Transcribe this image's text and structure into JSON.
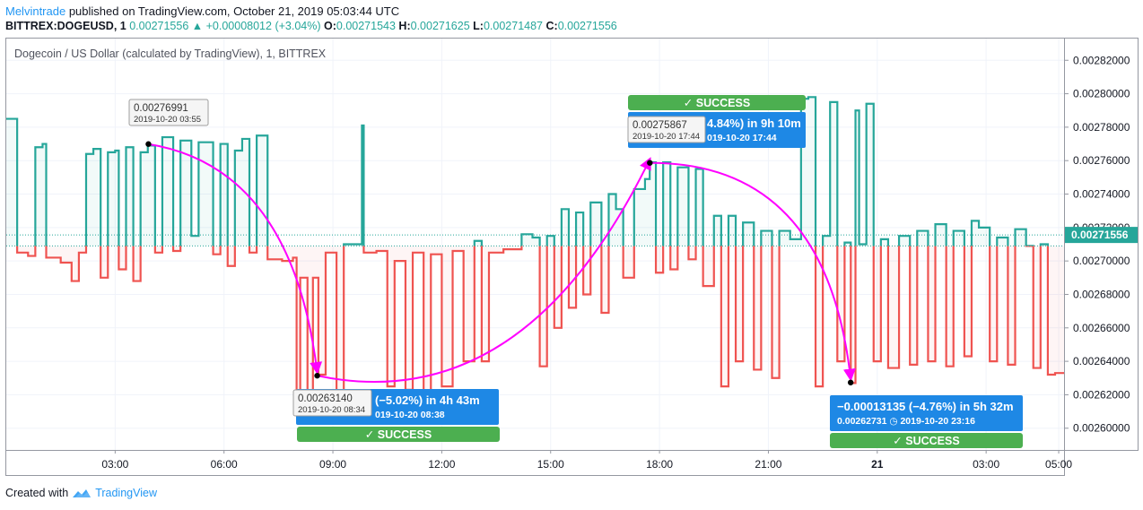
{
  "header": {
    "author": "Melvintrade",
    "published_text": " published on TradingView.com, October 21, 2019 05:03:44 UTC",
    "symbol": "BITTREX:DOGEUSD, 1",
    "last": "0.00271556",
    "change_arrow": "▲",
    "change": "+0.00008012 (+3.04%)",
    "o_label": "O:",
    "o_value": "0.00271543",
    "h_label": "H:",
    "h_value": "0.00271625",
    "l_label": "L:",
    "l_value": "0.00271487",
    "c_label": "C:",
    "c_value": "0.00271556"
  },
  "legend": "Dogecoin / US Dollar (calculated by TradingView), 1, BITTREX",
  "footer": {
    "created_with": "Created with",
    "brand": "TradingView"
  },
  "colors": {
    "up": "#26a69a",
    "down": "#ef5350",
    "arrow": "#ff00ff",
    "label_blue": "#1e88e5",
    "success_green": "#4caf50"
  },
  "chart_data": {
    "type": "line",
    "style": "baseline",
    "baseline": 0.002709,
    "last_price_label": "0.00271556",
    "x_ticks": [
      "03:00",
      "06:00",
      "09:00",
      "12:00",
      "15:00",
      "18:00",
      "21:00",
      "21",
      "03:00",
      "05:00"
    ],
    "x_tick_hours": [
      3,
      6,
      9,
      12,
      15,
      18,
      21,
      24,
      27,
      29
    ],
    "y_ticks": [
      "0.00260000",
      "0.00262000",
      "0.00264000",
      "0.00266000",
      "0.00268000",
      "0.00270000",
      "0.00272000",
      "0.00274000",
      "0.00276000",
      "0.00278000",
      "0.00280000",
      "0.00282000"
    ],
    "y_tick_values": [
      0.0026,
      0.00262,
      0.00264,
      0.00266,
      0.00268,
      0.0027,
      0.00272,
      0.00274,
      0.00276,
      0.00278,
      0.0028,
      0.00282
    ],
    "ylim": [
      0.002587,
      0.002833
    ],
    "xlim_hours": [
      0.0,
      29.3
    ],
    "series": [
      {
        "points": [
          [
            0.0,
            0.002785
          ],
          [
            0.3,
            0.002705
          ],
          [
            0.6,
            0.002703
          ],
          [
            0.8,
            0.002768
          ],
          [
            1.0,
            0.00277
          ],
          [
            1.1,
            0.002702
          ],
          [
            1.5,
            0.002699
          ],
          [
            1.8,
            0.002688
          ],
          [
            2.0,
            0.002705
          ],
          [
            2.2,
            0.002764
          ],
          [
            2.4,
            0.002767
          ],
          [
            2.6,
            0.00269
          ],
          [
            2.8,
            0.002765
          ],
          [
            3.0,
            0.002766
          ],
          [
            3.1,
            0.002695
          ],
          [
            3.3,
            0.002768
          ],
          [
            3.5,
            0.002688
          ],
          [
            3.7,
            0.002765
          ],
          [
            3.9,
            0.002769
          ],
          [
            4.1,
            0.002705
          ],
          [
            4.3,
            0.002774
          ],
          [
            4.6,
            0.002706
          ],
          [
            4.8,
            0.002772
          ],
          [
            5.1,
            0.002715
          ],
          [
            5.3,
            0.002771
          ],
          [
            5.7,
            0.002704
          ],
          [
            5.9,
            0.00277
          ],
          [
            6.1,
            0.002697
          ],
          [
            6.3,
            0.002766
          ],
          [
            6.5,
            0.002773
          ],
          [
            6.7,
            0.002705
          ],
          [
            6.9,
            0.002775
          ],
          [
            7.2,
            0.002701
          ],
          [
            7.6,
            0.0027
          ],
          [
            7.9,
            0.002702
          ],
          [
            8.0,
            0.002612
          ],
          [
            8.1,
            0.00269
          ],
          [
            8.3,
            0.002615
          ],
          [
            8.45,
            0.00269
          ],
          [
            8.6,
            0.002632
          ],
          [
            8.8,
            0.002705
          ],
          [
            9.1,
            0.002621
          ],
          [
            9.3,
            0.00271
          ],
          [
            9.6,
            0.00271
          ],
          [
            9.8,
            0.002781
          ],
          [
            9.85,
            0.002705
          ],
          [
            10.2,
            0.002706
          ],
          [
            10.5,
            0.002625
          ],
          [
            10.7,
            0.0027
          ],
          [
            11.0,
            0.002623
          ],
          [
            11.2,
            0.002705
          ],
          [
            11.5,
            0.002622
          ],
          [
            11.7,
            0.002704
          ],
          [
            12.0,
            0.002625
          ],
          [
            12.3,
            0.002706
          ],
          [
            12.6,
            0.00264
          ],
          [
            12.9,
            0.002712
          ],
          [
            13.1,
            0.00264
          ],
          [
            13.3,
            0.002705
          ],
          [
            13.7,
            0.002707
          ],
          [
            14.2,
            0.002716
          ],
          [
            14.5,
            0.002714
          ],
          [
            14.7,
            0.002637
          ],
          [
            14.9,
            0.002715
          ],
          [
            15.1,
            0.00266
          ],
          [
            15.3,
            0.002731
          ],
          [
            15.5,
            0.002672
          ],
          [
            15.7,
            0.002729
          ],
          [
            15.9,
            0.00268
          ],
          [
            16.1,
            0.002735
          ],
          [
            16.4,
            0.002669
          ],
          [
            16.6,
            0.00274
          ],
          [
            16.8,
            0.002731
          ],
          [
            17.0,
            0.00269
          ],
          [
            17.3,
            0.002743
          ],
          [
            17.6,
            0.002749
          ],
          [
            17.73,
            0.002759
          ],
          [
            17.9,
            0.002693
          ],
          [
            18.1,
            0.002759
          ],
          [
            18.3,
            0.002695
          ],
          [
            18.5,
            0.002756
          ],
          [
            18.8,
            0.002701
          ],
          [
            19.0,
            0.002755
          ],
          [
            19.2,
            0.002685
          ],
          [
            19.5,
            0.002727
          ],
          [
            19.7,
            0.002625
          ],
          [
            19.9,
            0.002727
          ],
          [
            20.1,
            0.00264
          ],
          [
            20.3,
            0.002723
          ],
          [
            20.6,
            0.002635
          ],
          [
            20.8,
            0.002718
          ],
          [
            21.1,
            0.00263
          ],
          [
            21.3,
            0.002718
          ],
          [
            21.6,
            0.002713
          ],
          [
            21.9,
            0.002797
          ],
          [
            22.1,
            0.002798
          ],
          [
            22.3,
            0.002625
          ],
          [
            22.5,
            0.002715
          ],
          [
            22.7,
            0.002795
          ],
          [
            22.9,
            0.00264
          ],
          [
            23.1,
            0.002711
          ],
          [
            23.27,
            0.002627
          ],
          [
            23.4,
            0.00279
          ],
          [
            23.5,
            0.00271
          ],
          [
            23.7,
            0.002794
          ],
          [
            23.9,
            0.00264
          ],
          [
            24.1,
            0.002713
          ],
          [
            24.3,
            0.002636
          ],
          [
            24.6,
            0.002715
          ],
          [
            24.9,
            0.002638
          ],
          [
            25.1,
            0.002718
          ],
          [
            25.4,
            0.00264
          ],
          [
            25.6,
            0.002722
          ],
          [
            25.9,
            0.002637
          ],
          [
            26.1,
            0.002718
          ],
          [
            26.4,
            0.002643
          ],
          [
            26.6,
            0.002724
          ],
          [
            26.8,
            0.00272
          ],
          [
            27.1,
            0.00264
          ],
          [
            27.3,
            0.002714
          ],
          [
            27.6,
            0.002638
          ],
          [
            27.8,
            0.002719
          ],
          [
            28.1,
            0.002709
          ],
          [
            28.3,
            0.002636
          ],
          [
            28.5,
            0.00271
          ],
          [
            28.7,
            0.002632
          ],
          [
            28.9,
            0.002633
          ],
          [
            29.2,
            0.002716
          ]
        ]
      }
    ],
    "annotations": [
      {
        "kind": "tooltip",
        "price": "0.00276991",
        "date": "2019-10-20 03:55",
        "x": 3.917,
        "y": 0.00276991
      },
      {
        "kind": "tooltip",
        "price": "0.00263140",
        "date": "2019-10-20 08:34",
        "x": 8.567,
        "y": 0.0026314
      },
      {
        "kind": "tooltip",
        "price": "0.00275867",
        "date": "2019-10-20 17:44",
        "x": 17.733,
        "y": 0.00275867
      },
      {
        "kind": "target",
        "x": 23.267,
        "y": 0.00262731
      }
    ],
    "result_boxes": [
      {
        "line1": "(−5.02%) in 4h 43m",
        "line2": "019-10-20  08:38",
        "anchor_x": 8.6,
        "anchor_y": 0.0026314
      },
      {
        "line1": "4.84%) in 9h 10m",
        "line2": "019-10-20  17:44",
        "anchor_x": 17.733,
        "anchor_y": 0.00275867
      },
      {
        "line1": "−0.00013135 (−4.76%) in 5h 32m",
        "line2": "0.00262731 ◷ 2019-10-20  23:16",
        "anchor_x": 23.267,
        "anchor_y": 0.00262731
      }
    ],
    "success_labels": [
      "✓ SUCCESS",
      "✓ SUCCESS",
      "✓ SUCCESS"
    ]
  }
}
